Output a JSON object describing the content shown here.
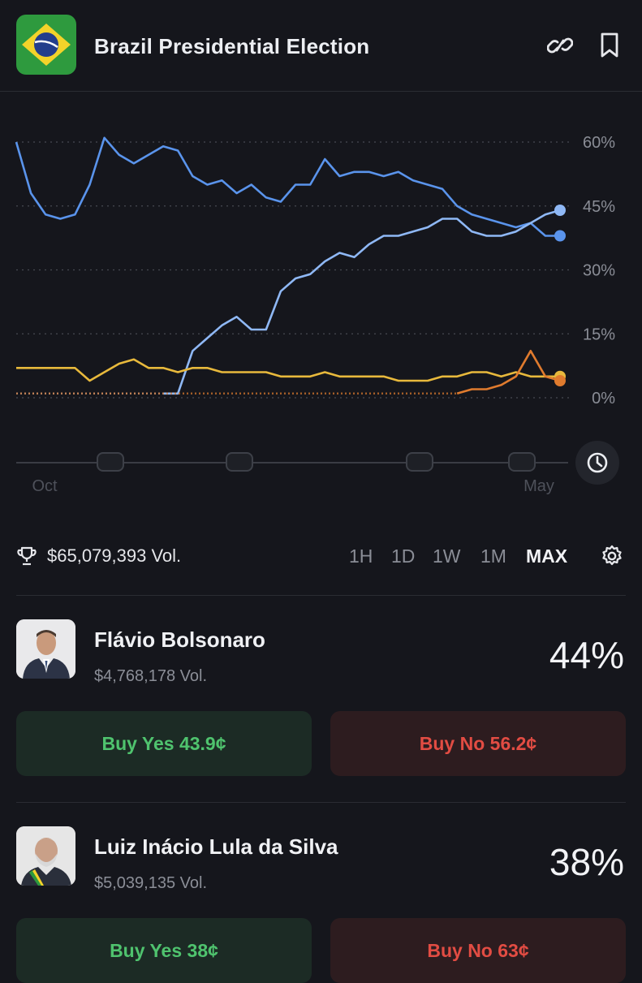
{
  "header": {
    "title": "Brazil Presidential Election",
    "flag_icon": "brazil-flag-icon",
    "link_icon": "link-icon",
    "bookmark_icon": "bookmark-icon"
  },
  "chart_data": {
    "type": "line",
    "y_ticks": [
      "60%",
      "45%",
      "30%",
      "15%",
      "0%"
    ],
    "x_ticks": [
      "Oct",
      "May"
    ],
    "ylim": [
      0,
      60
    ],
    "grid": true,
    "colors": {
      "line_light_blue": "#8fb8f5",
      "line_blue": "#5a94ec",
      "line_yellow": "#e8b93c",
      "line_orange": "#e07b2e"
    },
    "series": [
      {
        "color": "#5a94ec",
        "values": [
          60,
          48,
          43,
          42,
          43,
          50,
          61,
          57,
          55,
          57,
          59,
          58,
          52,
          50,
          51,
          48,
          50,
          47,
          46,
          50,
          50,
          56,
          52,
          53,
          53,
          52,
          53,
          51,
          50,
          49,
          45,
          43,
          42,
          41,
          40,
          41,
          38,
          38
        ]
      },
      {
        "color": "#8fb8f5",
        "values": [
          null,
          null,
          null,
          null,
          null,
          null,
          null,
          null,
          null,
          null,
          1,
          1,
          11,
          14,
          17,
          19,
          16,
          16,
          25,
          28,
          29,
          32,
          34,
          33,
          36,
          38,
          38,
          39,
          40,
          42,
          42,
          39,
          38,
          38,
          39,
          41,
          43,
          44
        ]
      },
      {
        "color": "#e8b93c",
        "values": [
          7,
          7,
          7,
          7,
          7,
          4,
          6,
          8,
          9,
          7,
          7,
          6,
          7,
          7,
          6,
          6,
          6,
          6,
          5,
          5,
          5,
          6,
          5,
          5,
          5,
          5,
          4,
          4,
          4,
          5,
          5,
          6,
          6,
          5,
          6,
          5,
          5,
          5
        ]
      },
      {
        "color": "#e07b2e",
        "values": [
          null,
          null,
          null,
          null,
          null,
          null,
          null,
          null,
          null,
          null,
          null,
          null,
          null,
          null,
          null,
          null,
          null,
          null,
          null,
          null,
          null,
          null,
          null,
          null,
          null,
          null,
          null,
          null,
          null,
          null,
          1,
          2,
          2,
          3,
          5,
          11,
          5,
          4
        ]
      }
    ]
  },
  "controls": {
    "volume": "$65,079,393 Vol.",
    "timeframes": [
      "1H",
      "1D",
      "1W",
      "1M",
      "MAX"
    ],
    "active_timeframe": "MAX",
    "trophy_icon": "trophy-icon",
    "gear_icon": "gear-icon",
    "clock_icon": "clock-icon"
  },
  "candidates": [
    {
      "name": "Flávio Bolsonaro",
      "volume": "$4,768,178 Vol.",
      "percent": "44%",
      "buy_yes": "Buy Yes 43.9¢",
      "buy_no": "Buy No 56.2¢"
    },
    {
      "name": "Luiz Inácio Lula da Silva",
      "volume": "$5,039,135 Vol.",
      "percent": "38%",
      "buy_yes": "Buy Yes 38¢",
      "buy_no": "Buy No 63¢"
    }
  ]
}
